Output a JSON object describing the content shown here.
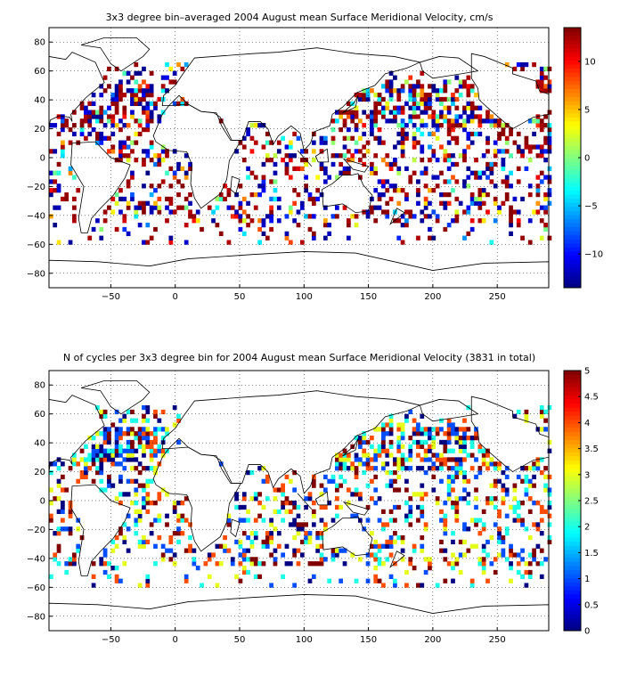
{
  "figure": {
    "charts": [
      {
        "title": "3x3 degree bin–averaged 2004 August mean Surface Meridional Velocity, cm/s",
        "colorbar_ticks": [
          "−10",
          "−5",
          "0",
          "5",
          "10"
        ]
      },
      {
        "title": "N of cycles per 3x3 degree bin for 2004 August mean Surface Meridional Velocity (3831 in total)",
        "colorbar_ticks": [
          "0",
          "0.5",
          "1",
          "1.5",
          "2",
          "2.5",
          "3",
          "3.5",
          "4",
          "4.5",
          "5"
        ]
      }
    ],
    "x_tick_labels": [
      "−50",
      "0",
      "50",
      "100",
      "150",
      "200",
      "250"
    ],
    "y_tick_labels": [
      "−80",
      "−60",
      "−40",
      "−20",
      "0",
      "20",
      "40",
      "60",
      "80"
    ]
  },
  "chart_data": [
    {
      "type": "heatmap",
      "title": "3x3 degree bin–averaged 2004 August mean Surface Meridional Velocity, cm/s",
      "xlabel": "",
      "ylabel": "",
      "xlim": [
        -98,
        290
      ],
      "ylim": [
        -90,
        90
      ],
      "xticks": [
        -50,
        0,
        50,
        100,
        150,
        200,
        250
      ],
      "yticks": [
        -80,
        -60,
        -40,
        -20,
        0,
        20,
        40,
        60,
        80
      ],
      "bin_size_deg": 3,
      "grid": "dotted",
      "colormap": "jet",
      "colorbar": {
        "min": -13.5,
        "max": 13.5,
        "ticks": [
          -10,
          -5,
          0,
          5,
          10
        ]
      },
      "coastlines": true,
      "note_values": "binned field; individual bin values are not labeled"
    },
    {
      "type": "heatmap",
      "title": "N of cycles per 3x3 degree bin for 2004 August mean Surface Meridional Velocity (3831 in total)",
      "xlabel": "",
      "ylabel": "",
      "xlim": [
        -98,
        290
      ],
      "ylim": [
        -90,
        90
      ],
      "xticks": [
        -50,
        0,
        50,
        100,
        150,
        200,
        250
      ],
      "yticks": [
        -80,
        -60,
        -40,
        -20,
        0,
        20,
        40,
        60,
        80
      ],
      "bin_size_deg": 3,
      "grid": "dotted",
      "colormap": "jet",
      "colorbar": {
        "min": 0,
        "max": 5,
        "ticks": [
          0,
          0.5,
          1,
          1.5,
          2,
          2.5,
          3,
          3.5,
          4,
          4.5,
          5
        ]
      },
      "coastlines": true,
      "total_cycles": 3831
    }
  ]
}
